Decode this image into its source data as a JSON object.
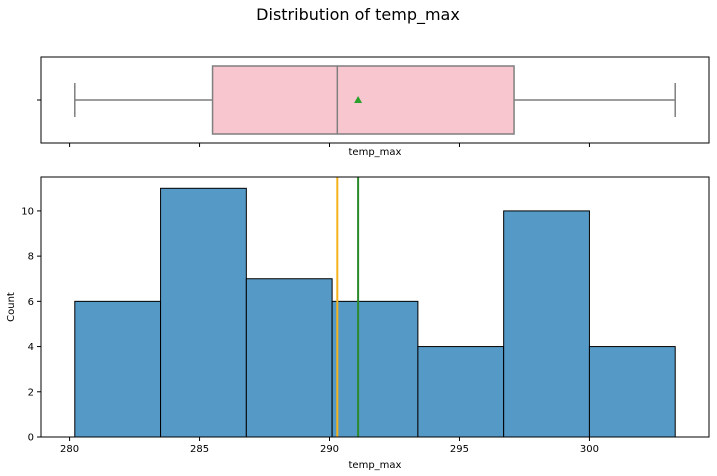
{
  "title": "Distribution of temp_max",
  "chart_data": [
    {
      "type": "box",
      "xlabel": "temp_max",
      "xlim": [
        278.9,
        304.6
      ],
      "xticks": [
        280,
        285,
        290,
        295,
        300
      ],
      "show_tick_labels": false,
      "min": 280.2,
      "q1": 285.5,
      "median": 290.3,
      "q3": 297.1,
      "max": 303.3,
      "mean": 291.1,
      "box_color": "#f8c6cf",
      "mean_marker_color": "#2ca02c"
    },
    {
      "type": "histogram",
      "xlabel": "temp_max",
      "ylabel": "Count",
      "xlim": [
        278.9,
        304.6
      ],
      "ylim": [
        0,
        11.5
      ],
      "xticks": [
        280,
        285,
        290,
        295,
        300
      ],
      "yticks": [
        0,
        2,
        4,
        6,
        8,
        10
      ],
      "bins": [
        {
          "from": 280.2,
          "to": 283.5,
          "count": 6
        },
        {
          "from": 283.5,
          "to": 286.8,
          "count": 11
        },
        {
          "from": 286.8,
          "to": 290.1,
          "count": 7
        },
        {
          "from": 290.1,
          "to": 293.4,
          "count": 6
        },
        {
          "from": 293.4,
          "to": 296.7,
          "count": 4
        },
        {
          "from": 296.7,
          "to": 300.0,
          "count": 10
        },
        {
          "from": 300.0,
          "to": 303.3,
          "count": 4
        }
      ],
      "bar_color": "#5599c7",
      "mean_line": {
        "value": 291.1,
        "color": "#2a8a2a"
      },
      "median_line": {
        "value": 290.3,
        "color": "#f5b21b"
      }
    }
  ]
}
